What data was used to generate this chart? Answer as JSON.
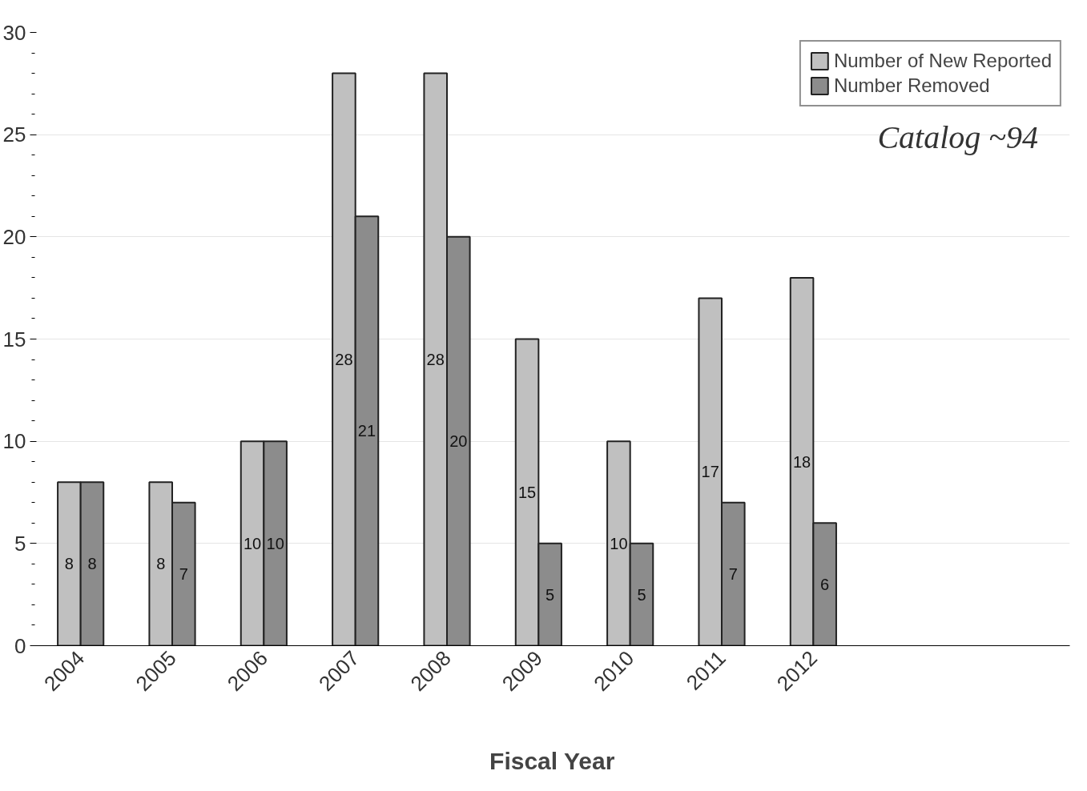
{
  "chart_data": {
    "type": "bar",
    "xlabel": "Fiscal Year",
    "categories": [
      "2004",
      "2005",
      "2006",
      "2007",
      "2008",
      "2009",
      "2010",
      "2011",
      "2012"
    ],
    "series": [
      {
        "name": "Number of New Reported",
        "color": "#c0c0c0",
        "values": [
          8,
          8,
          10,
          28,
          28,
          15,
          10,
          17,
          18
        ]
      },
      {
        "name": "Number Removed",
        "color": "#8c8c8c",
        "values": [
          8,
          7,
          10,
          21,
          20,
          5,
          5,
          7,
          6
        ]
      }
    ],
    "ylim": [
      0,
      30
    ],
    "yticks": [
      0,
      5,
      10,
      15,
      20,
      25,
      30
    ],
    "grid": "y",
    "legend": "top right",
    "data_labels": true,
    "annotations": [
      "Catalog ~94"
    ]
  }
}
